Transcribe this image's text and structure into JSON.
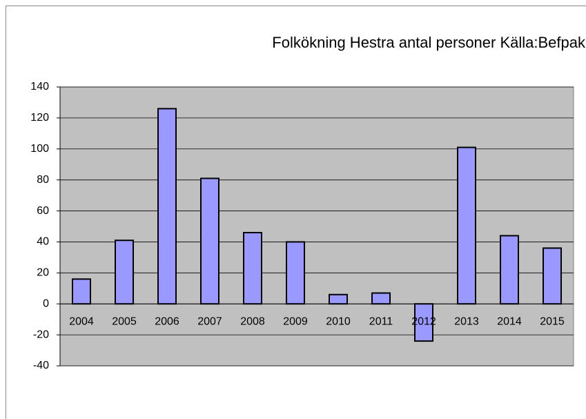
{
  "chart_data": {
    "type": "bar",
    "title": "Folkökning Hestra antal personer Källa:Befpak",
    "categories": [
      "2004",
      "2005",
      "2006",
      "2007",
      "2008",
      "2009",
      "2010",
      "2011",
      "2012",
      "2013",
      "2014",
      "2015"
    ],
    "values": [
      16,
      41,
      126,
      81,
      46,
      40,
      6,
      7,
      -24,
      101,
      44,
      36
    ],
    "color": "#9999ff",
    "ylim": [
      -40,
      140
    ],
    "yticks": [
      -40,
      -20,
      0,
      20,
      40,
      60,
      80,
      100,
      120,
      140
    ],
    "grid": true
  }
}
